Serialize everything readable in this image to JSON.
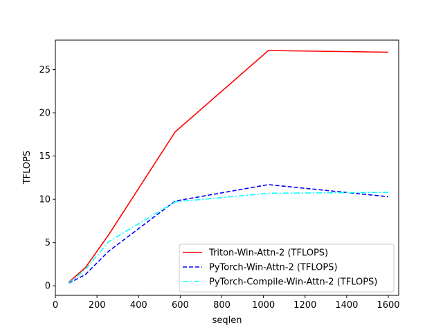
{
  "chart_data": {
    "type": "line",
    "title": "",
    "xlabel": "seqlen",
    "ylabel": "TFLOPS",
    "xlim": [
      0,
      1650
    ],
    "ylim": [
      -1.1,
      28.4
    ],
    "xticks": [
      0,
      200,
      400,
      600,
      800,
      1000,
      1200,
      1400,
      1600
    ],
    "yticks": [
      0,
      5,
      10,
      15,
      20,
      25
    ],
    "grid": false,
    "legend_position": "lower-right",
    "series": [
      {
        "name": "Triton-Win-Attn-2 (TFLOPS)",
        "color": "#ff0000",
        "style": "solid",
        "x": [
          64,
          144,
          256,
          576,
          1024,
          1600
        ],
        "y": [
          0.4,
          2.1,
          5.9,
          17.8,
          27.2,
          27.0
        ]
      },
      {
        "name": "PyTorch-Win-Attn-2 (TFLOPS)",
        "color": "#0000ff",
        "style": "dashed",
        "x": [
          64,
          144,
          256,
          576,
          1024,
          1600
        ],
        "y": [
          0.3,
          1.3,
          4.0,
          9.8,
          11.7,
          10.3
        ]
      },
      {
        "name": "PyTorch-Compile-Win-Attn-2 (TFLOPS)",
        "color": "#00ffff",
        "style": "dashdot",
        "x": [
          64,
          144,
          256,
          576,
          1024,
          1600
        ],
        "y": [
          0.3,
          1.9,
          5.1,
          9.7,
          10.7,
          10.8
        ]
      }
    ]
  }
}
